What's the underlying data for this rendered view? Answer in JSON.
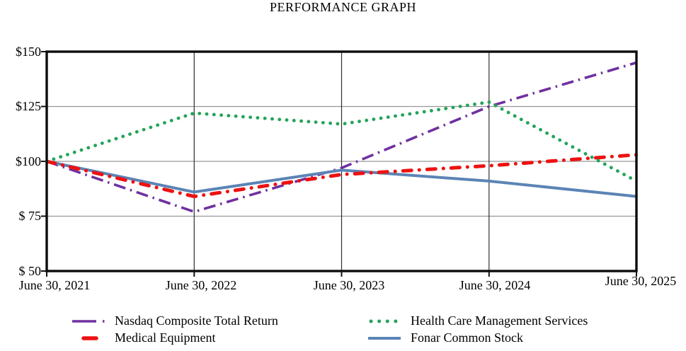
{
  "title": "PERFORMANCE GRAPH",
  "chart_data": {
    "type": "line",
    "title": "PERFORMANCE GRAPH",
    "x_categories": [
      "June 30, 2021",
      "June 30, 2022",
      "June 30, 2023",
      "June 30, 2024",
      "June 30, 2025"
    ],
    "y_tick_labels": [
      "$150",
      "$125",
      "$100",
      "$ 75",
      "$ 50"
    ],
    "y_tick_values": [
      150,
      125,
      100,
      75,
      50
    ],
    "ylim": [
      50,
      150
    ],
    "grid": true,
    "legend_position": "bottom",
    "series": [
      {
        "name": "Nasdaq Composite Total Return",
        "color": "#7030A0",
        "line_style": "dash-dot",
        "values": [
          100,
          77,
          97,
          125,
          145
        ]
      },
      {
        "name": "Medical Equipment",
        "color": "#EE1111",
        "line_style": "thick-dash-dot",
        "values": [
          100,
          84,
          94,
          98,
          103
        ]
      },
      {
        "name": "Health Care Management Services",
        "color": "#24A45A",
        "line_style": "dotted",
        "values": [
          100,
          122,
          117,
          127,
          91
        ]
      },
      {
        "name": "Fonar Common Stock",
        "color": "#5B84B5",
        "line_style": "solid",
        "values": [
          100,
          86,
          96,
          91,
          84
        ]
      }
    ]
  }
}
